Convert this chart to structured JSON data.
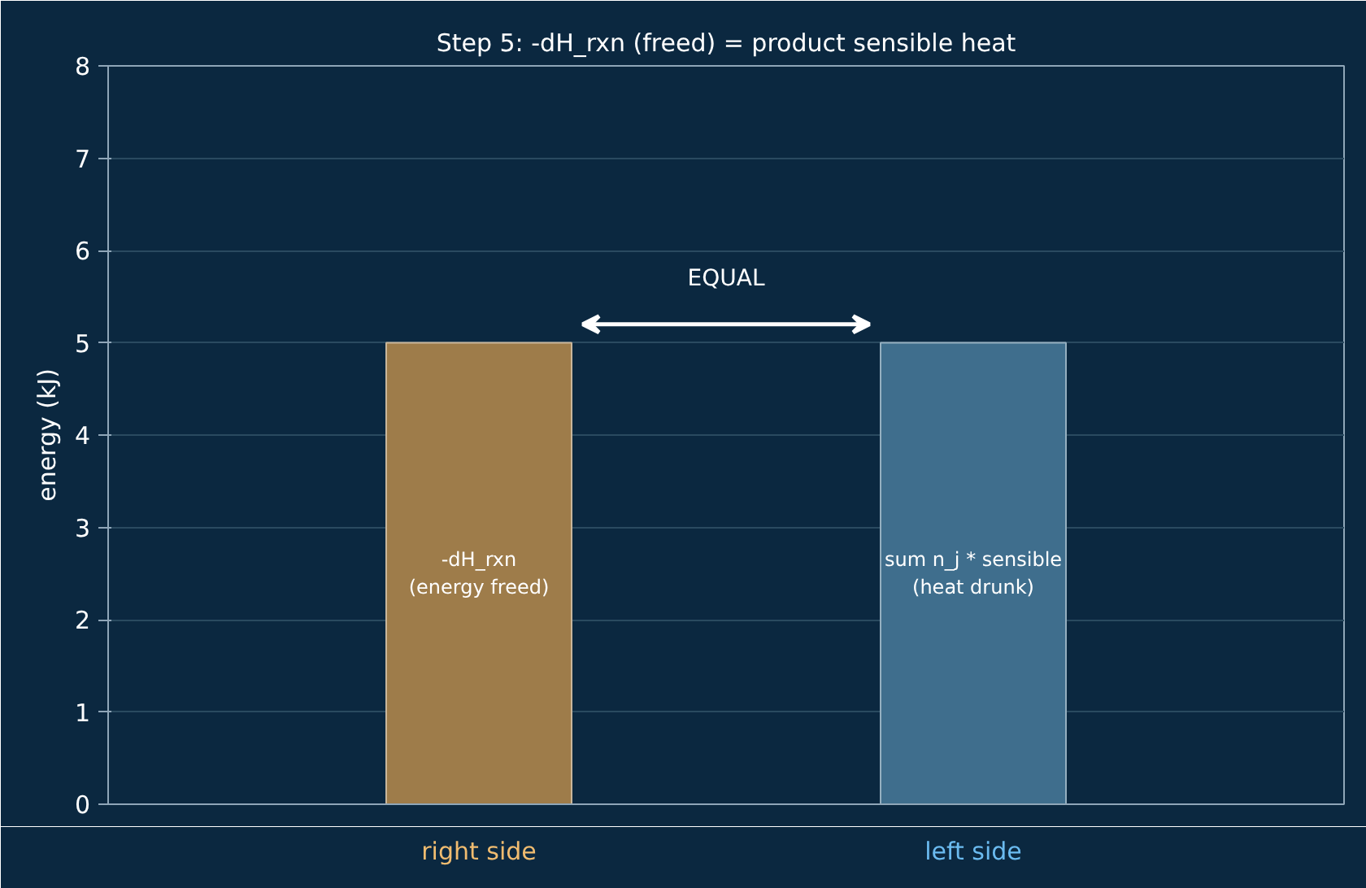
{
  "chart_data": {
    "type": "bar",
    "title": "Step 5: -dH_rxn (freed) = product sensible heat",
    "ylabel": "energy (kJ)",
    "categories": [
      "right side",
      "left side"
    ],
    "values": [
      5,
      5
    ],
    "colors": [
      "#9e7c4a",
      "#3f6e8d"
    ],
    "ylim": [
      0,
      8
    ],
    "yticks": [
      0,
      1,
      2,
      3,
      4,
      5,
      6,
      7,
      8
    ],
    "grid": "y",
    "annotations": [
      "-dH_rxn\n(energy freed)",
      "sum n_j * sensible\n(heat drunk)",
      "EQUAL"
    ]
  }
}
